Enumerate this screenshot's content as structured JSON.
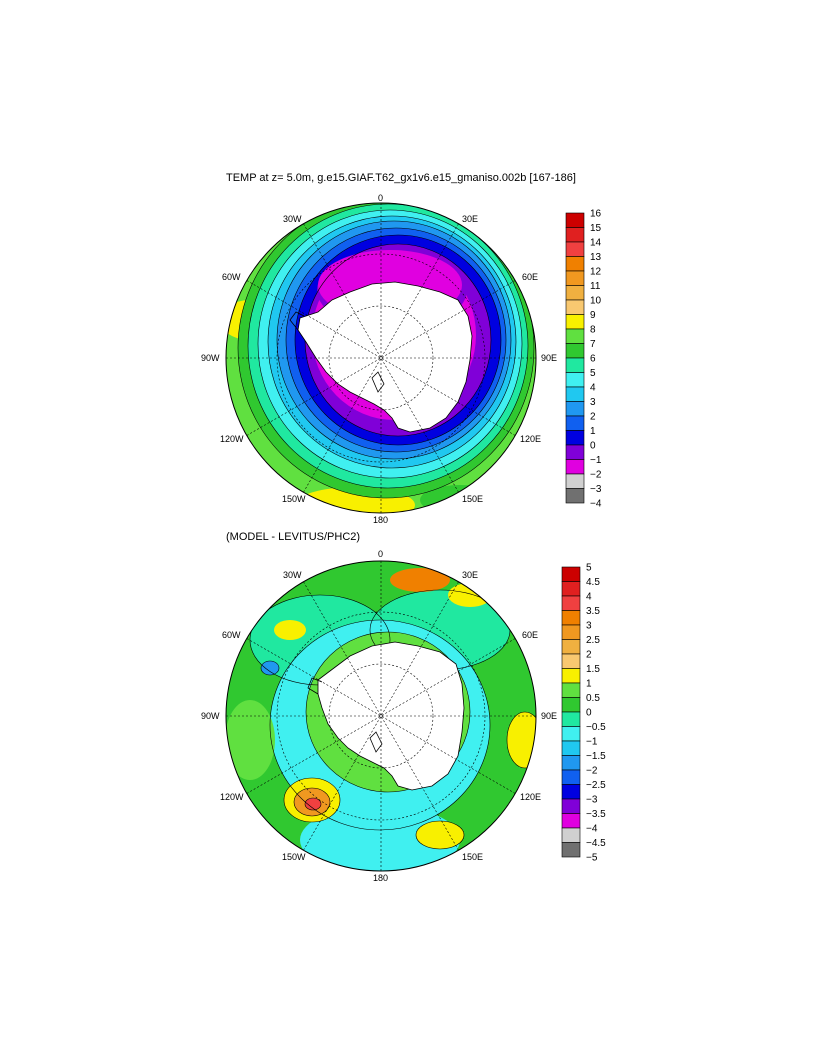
{
  "top_panel": {
    "title": "TEMP at z=   5.0m, g.e15.GIAF.T62_gx1v6.e15_gmaniso.002b [167-186]",
    "meridian_labels": [
      "0",
      "30E",
      "60E",
      "90E",
      "120E",
      "150E",
      "180",
      "150W",
      "120W",
      "90W",
      "60W",
      "30W"
    ],
    "colorbar": {
      "ticks": [
        "16",
        "15",
        "14",
        "13",
        "12",
        "11",
        "10",
        "9",
        "8",
        "7",
        "6",
        "5",
        "4",
        "3",
        "2",
        "1",
        "0",
        "−1",
        "−2",
        "−3",
        "−4"
      ],
      "colors": [
        "#cc0000",
        "#e02020",
        "#f04040",
        "#f08000",
        "#f09820",
        "#f0b040",
        "#f8c870",
        "#f8f000",
        "#60e040",
        "#30c830",
        "#20e8a0",
        "#40f0f0",
        "#20c8f0",
        "#2098f0",
        "#1060f0",
        "#0000e0",
        "#8000d8",
        "#e000e0",
        "#d0d0d0",
        "#707070"
      ]
    },
    "legend_labels": []
  },
  "bottom_panel": {
    "title": "(MODEL - LEVITUS/PHC2)",
    "meridian_labels": [
      "0",
      "30E",
      "60E",
      "90E",
      "120E",
      "150E",
      "180",
      "150W",
      "120W",
      "90W",
      "60W",
      "30W"
    ],
    "colorbar": {
      "ticks": [
        "5",
        "4.5",
        "4",
        "3.5",
        "3",
        "2.5",
        "2",
        "1.5",
        "1",
        "0.5",
        "0",
        "−0.5",
        "−1",
        "−1.5",
        "−2",
        "−2.5",
        "−3",
        "−3.5",
        "−4",
        "−4.5",
        "−5"
      ],
      "colors": [
        "#cc0000",
        "#e02020",
        "#f04040",
        "#f08000",
        "#f09820",
        "#f0b040",
        "#f8c870",
        "#f8f000",
        "#60e040",
        "#30c830",
        "#20e8a0",
        "#40f0f0",
        "#20c8f0",
        "#2098f0",
        "#1060f0",
        "#0000e0",
        "#8000d8",
        "#e000e0",
        "#d0d0d0",
        "#707070"
      ]
    }
  }
}
